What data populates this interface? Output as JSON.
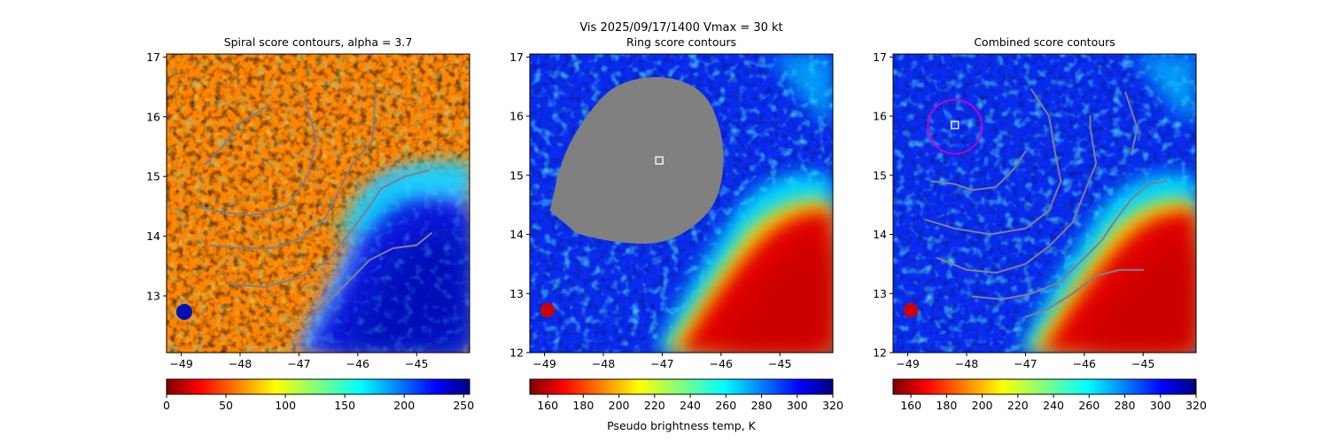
{
  "suptitle": "Vis  2025/09/17/1400    Vmax = 30 kt",
  "colors": {
    "contour": "#7f7f8f",
    "marker_box": "#ffffff",
    "ring": "#cc00cc",
    "mask": "#808080"
  },
  "chart_data": [
    {
      "type": "heatmap",
      "title": "Spiral score contours, alpha =  3.7",
      "xlim": [
        -49.25,
        -44.1
      ],
      "ylim": [
        12.05,
        17.05
      ],
      "xticks": [
        -49,
        -48,
        -47,
        -46,
        -45
      ],
      "yticks": [
        13,
        14,
        15,
        16,
        17
      ],
      "xtick_labels": [
        "−49",
        "−48",
        "−47",
        "−46",
        "−45"
      ],
      "ytick_labels": [
        "13",
        "14",
        "15",
        "16",
        "17"
      ],
      "colormap": "jet_r",
      "colorbar": {
        "min": 0,
        "max": 255,
        "ticks": [
          0,
          50,
          100,
          150,
          200,
          250
        ],
        "labels": [
          "0",
          "50",
          "100",
          "150",
          "200",
          "250"
        ],
        "label": ""
      },
      "contours": [
        [
          [
            -48.6,
            15.2
          ],
          [
            -48.3,
            15.5
          ],
          [
            -48.0,
            15.9
          ],
          [
            -47.5,
            16.2
          ]
        ],
        [
          [
            -48.7,
            14.5
          ],
          [
            -48.3,
            14.4
          ],
          [
            -47.8,
            14.35
          ],
          [
            -47.2,
            14.5
          ],
          [
            -46.85,
            15.0
          ],
          [
            -46.7,
            15.6
          ],
          [
            -46.9,
            16.3
          ]
        ],
        [
          [
            -48.5,
            13.85
          ],
          [
            -48.0,
            13.8
          ],
          [
            -47.4,
            13.8
          ],
          [
            -46.9,
            14.0
          ],
          [
            -46.55,
            14.3
          ],
          [
            -46.3,
            14.8
          ],
          [
            -46.1,
            15.2
          ],
          [
            -45.75,
            15.6
          ],
          [
            -45.7,
            16.4
          ]
        ],
        [
          [
            -48.2,
            13.2
          ],
          [
            -47.6,
            13.15
          ],
          [
            -47.0,
            13.3
          ],
          [
            -46.5,
            13.6
          ],
          [
            -46.1,
            14.1
          ],
          [
            -45.8,
            14.5
          ],
          [
            -45.6,
            14.8
          ],
          [
            -45.2,
            15.0
          ],
          [
            -44.8,
            15.1
          ]
        ],
        [
          [
            -46.9,
            12.6
          ],
          [
            -46.5,
            12.9
          ],
          [
            -46.1,
            13.3
          ],
          [
            -45.8,
            13.6
          ],
          [
            -45.4,
            13.8
          ],
          [
            -45.0,
            13.85
          ],
          [
            -44.75,
            14.05
          ]
        ]
      ],
      "markers": [],
      "ring": null,
      "mask": null
    },
    {
      "type": "heatmap",
      "title": "Ring score contours",
      "xlim": [
        -49.25,
        -44.1
      ],
      "ylim": [
        12.0,
        17.05
      ],
      "xticks": [
        -49,
        -48,
        -47,
        -46,
        -45
      ],
      "yticks": [
        12,
        13,
        14,
        15,
        16,
        17
      ],
      "xtick_labels": [
        "−49",
        "−48",
        "−47",
        "−46",
        "−45"
      ],
      "ytick_labels": [
        "12",
        "13",
        "14",
        "15",
        "16",
        "17"
      ],
      "colormap": "jet_r",
      "colorbar": {
        "min": 150,
        "max": 320,
        "ticks": [
          160,
          180,
          200,
          220,
          240,
          260,
          280,
          300,
          320
        ],
        "labels": [
          "160",
          "180",
          "200",
          "220",
          "240",
          "260",
          "280",
          "300",
          "320"
        ],
        "label": "Pseudo brightness temp, K"
      },
      "contours": [],
      "markers": [
        [
          -47.05,
          15.25
        ]
      ],
      "ring": null,
      "mask": [
        [
          -48.9,
          14.4
        ],
        [
          -48.7,
          15.3
        ],
        [
          -48.3,
          16.0
        ],
        [
          -47.8,
          16.55
        ],
        [
          -47.0,
          16.7
        ],
        [
          -46.3,
          16.45
        ],
        [
          -46.0,
          15.8
        ],
        [
          -45.95,
          15.1
        ],
        [
          -46.1,
          14.5
        ],
        [
          -46.5,
          14.1
        ],
        [
          -47.0,
          13.85
        ],
        [
          -47.6,
          13.85
        ],
        [
          -48.2,
          13.95
        ],
        [
          -48.7,
          14.1
        ]
      ]
    },
    {
      "type": "heatmap",
      "title": "Combined score contours",
      "xlim": [
        -49.25,
        -44.1
      ],
      "ylim": [
        12.0,
        17.05
      ],
      "xticks": [
        -49,
        -48,
        -47,
        -46,
        -45
      ],
      "yticks": [
        12,
        13,
        14,
        15,
        16,
        17
      ],
      "xtick_labels": [
        "−49",
        "−48",
        "−47",
        "−46",
        "−45"
      ],
      "ytick_labels": [
        "12",
        "13",
        "14",
        "15",
        "16",
        "17"
      ],
      "colormap": "jet_r",
      "colorbar": {
        "min": 150,
        "max": 320,
        "ticks": [
          160,
          180,
          200,
          220,
          240,
          260,
          280,
          300,
          320
        ],
        "labels": [
          "160",
          "180",
          "200",
          "220",
          "240",
          "260",
          "280",
          "300",
          "320"
        ],
        "label": ""
      },
      "contours": [
        [
          [
            -48.6,
            14.9
          ],
          [
            -48.2,
            14.85
          ],
          [
            -47.9,
            14.75
          ],
          [
            -47.5,
            14.8
          ],
          [
            -47.2,
            15.1
          ],
          [
            -47.0,
            15.4
          ]
        ],
        [
          [
            -48.7,
            14.25
          ],
          [
            -48.2,
            14.1
          ],
          [
            -47.6,
            14.0
          ],
          [
            -47.0,
            14.1
          ],
          [
            -46.6,
            14.4
          ],
          [
            -46.4,
            14.9
          ],
          [
            -46.5,
            15.4
          ],
          [
            -46.6,
            16.0
          ],
          [
            -46.9,
            16.45
          ]
        ],
        [
          [
            -48.5,
            13.6
          ],
          [
            -48.0,
            13.4
          ],
          [
            -47.5,
            13.35
          ],
          [
            -47.0,
            13.5
          ],
          [
            -46.6,
            13.8
          ],
          [
            -46.2,
            14.2
          ],
          [
            -46.0,
            14.7
          ],
          [
            -45.8,
            15.2
          ],
          [
            -45.9,
            15.8
          ],
          [
            -45.9,
            16.0
          ]
        ],
        [
          [
            -47.9,
            12.95
          ],
          [
            -47.4,
            12.9
          ],
          [
            -46.9,
            13.0
          ],
          [
            -46.4,
            13.2
          ],
          [
            -46.0,
            13.6
          ],
          [
            -45.7,
            13.9
          ],
          [
            -45.5,
            14.2
          ],
          [
            -45.2,
            14.6
          ],
          [
            -44.9,
            14.85
          ],
          [
            -44.6,
            14.9
          ]
        ],
        [
          [
            -47.0,
            12.6
          ],
          [
            -46.6,
            12.75
          ],
          [
            -46.2,
            13.0
          ],
          [
            -45.8,
            13.3
          ],
          [
            -45.4,
            13.4
          ],
          [
            -45.0,
            13.4
          ]
        ],
        [
          [
            -45.2,
            15.35
          ],
          [
            -45.1,
            15.8
          ],
          [
            -45.3,
            16.4
          ]
        ]
      ],
      "markers": [
        [
          -48.2,
          15.85
        ]
      ],
      "ring": {
        "cx": -48.2,
        "cy": 15.82,
        "r": 0.46
      },
      "mask": null
    }
  ]
}
